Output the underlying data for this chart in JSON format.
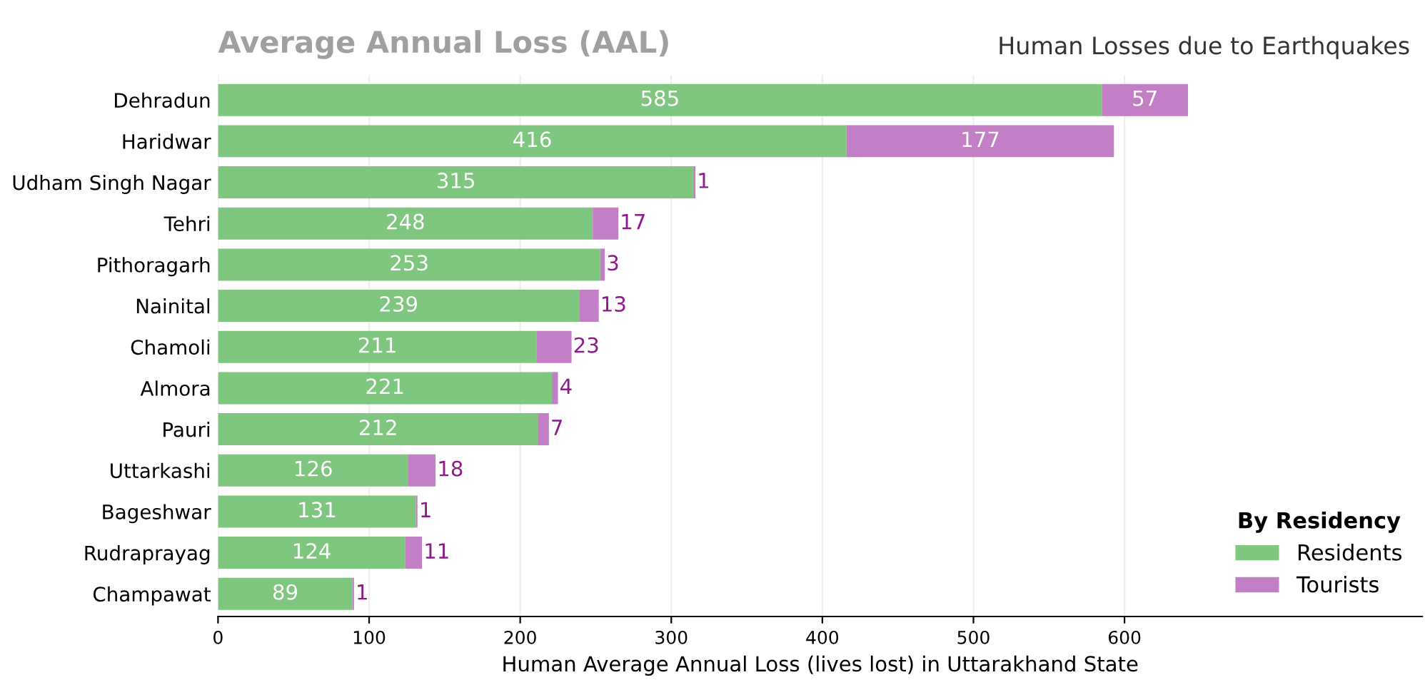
{
  "chart_data": {
    "type": "bar",
    "orientation": "horizontal",
    "stacked": true,
    "title": "Average Annual Loss (AAL)",
    "subtitle": "Human Losses due to Earthquakes",
    "xlabel": "Human Average Annual Loss (lives lost) in Uttarakhand State",
    "categories": [
      "Dehradun",
      "Haridwar",
      "Udham Singh Nagar",
      "Tehri",
      "Pithoragarh",
      "Nainital",
      "Chamoli",
      "Almora",
      "Pauri",
      "Uttarkashi",
      "Bageshwar",
      "Rudraprayag",
      "Champawat"
    ],
    "series": [
      {
        "name": "Residents",
        "color": "#7fc67f",
        "values": [
          585,
          416,
          315,
          248,
          253,
          239,
          211,
          221,
          212,
          126,
          131,
          124,
          89
        ]
      },
      {
        "name": "Tourists",
        "color": "#c27fc6",
        "values": [
          57,
          177,
          1,
          17,
          3,
          13,
          23,
          4,
          7,
          18,
          1,
          11,
          1
        ]
      }
    ],
    "xlim": [
      0,
      797
    ],
    "xticks": [
      0,
      100,
      200,
      300,
      400,
      500,
      600
    ],
    "grid": "x",
    "legend": "bottom right",
    "legend_title": "By Residency",
    "data_labels": true
  }
}
